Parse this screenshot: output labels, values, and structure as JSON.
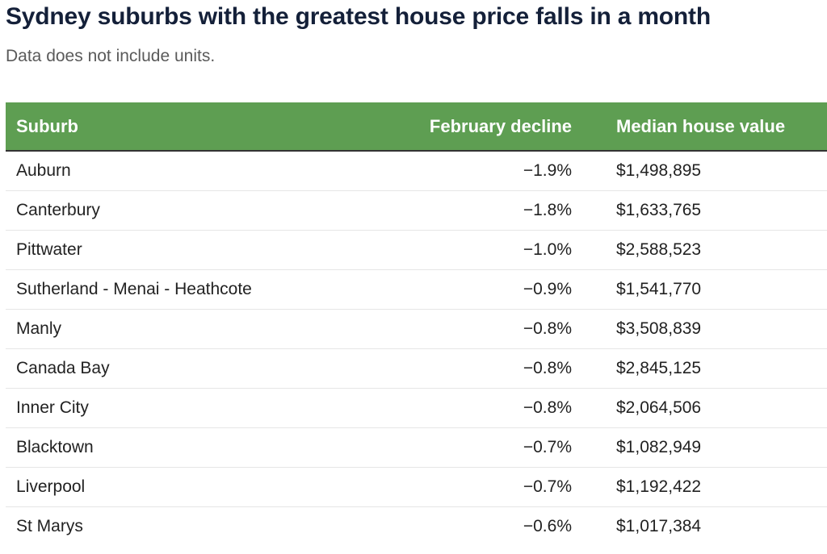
{
  "title": "Sydney suburbs with the greatest house price falls in a month",
  "subtitle": "Data does not include units.",
  "colors": {
    "header_bg": "#5e9e52",
    "header_text": "#ffffff",
    "title": "#142039"
  },
  "chart_data": {
    "type": "table",
    "title": "Sydney suburbs with the greatest house price falls in a month",
    "subtitle": "Data does not include units.",
    "columns": [
      "Suburb",
      "February decline",
      "Median house value"
    ],
    "rows": [
      [
        "Auburn",
        "−1.9%",
        "$1,498,895"
      ],
      [
        "Canterbury",
        "−1.8%",
        "$1,633,765"
      ],
      [
        "Pittwater",
        "−1.0%",
        "$2,588,523"
      ],
      [
        "Sutherland - Menai - Heathcote",
        "−0.9%",
        "$1,541,770"
      ],
      [
        "Manly",
        "−0.8%",
        "$3,508,839"
      ],
      [
        "Canada Bay",
        "−0.8%",
        "$2,845,125"
      ],
      [
        "Inner City",
        "−0.8%",
        "$2,064,506"
      ],
      [
        "Blacktown",
        "−0.7%",
        "$1,082,949"
      ],
      [
        "Liverpool",
        "−0.7%",
        "$1,192,422"
      ],
      [
        "St Marys",
        "−0.6%",
        "$1,017,384"
      ]
    ]
  }
}
